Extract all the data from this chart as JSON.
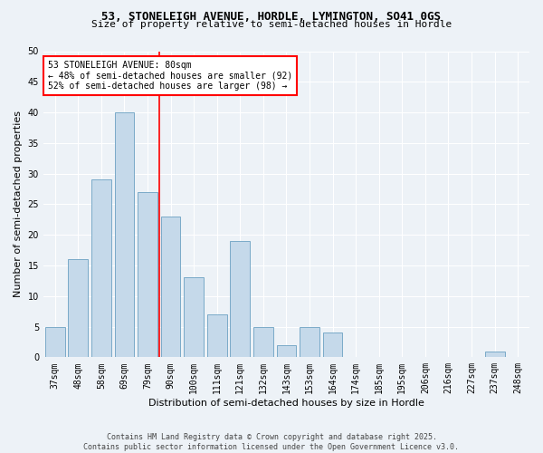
{
  "title1": "53, STONELEIGH AVENUE, HORDLE, LYMINGTON, SO41 0GS",
  "title2": "Size of property relative to semi-detached houses in Hordle",
  "xlabel": "Distribution of semi-detached houses by size in Hordle",
  "ylabel": "Number of semi-detached properties",
  "categories": [
    "37sqm",
    "48sqm",
    "58sqm",
    "69sqm",
    "79sqm",
    "90sqm",
    "100sqm",
    "111sqm",
    "121sqm",
    "132sqm",
    "143sqm",
    "153sqm",
    "164sqm",
    "174sqm",
    "185sqm",
    "195sqm",
    "206sqm",
    "216sqm",
    "227sqm",
    "237sqm",
    "248sqm"
  ],
  "values": [
    5,
    16,
    29,
    40,
    27,
    23,
    13,
    7,
    19,
    5,
    2,
    5,
    4,
    0,
    0,
    0,
    0,
    0,
    0,
    1,
    0
  ],
  "bar_color": "#c5d9ea",
  "bar_edgecolor": "#7aaac8",
  "ylim": [
    0,
    50
  ],
  "yticks": [
    0,
    5,
    10,
    15,
    20,
    25,
    30,
    35,
    40,
    45,
    50
  ],
  "vline_x": 4.5,
  "vline_color": "red",
  "annotation_title": "53 STONELEIGH AVENUE: 80sqm",
  "annotation_line1": "← 48% of semi-detached houses are smaller (92)",
  "annotation_line2": "52% of semi-detached houses are larger (98) →",
  "annotation_box_color": "white",
  "annotation_box_edgecolor": "red",
  "footer1": "Contains HM Land Registry data © Crown copyright and database right 2025.",
  "footer2": "Contains public sector information licensed under the Open Government Licence v3.0.",
  "bg_color": "#edf2f7",
  "grid_color": "#ffffff",
  "title1_fontsize": 9,
  "title2_fontsize": 8,
  "tick_fontsize": 7,
  "ylabel_fontsize": 8,
  "xlabel_fontsize": 8,
  "annot_fontsize": 7,
  "footer_fontsize": 6
}
